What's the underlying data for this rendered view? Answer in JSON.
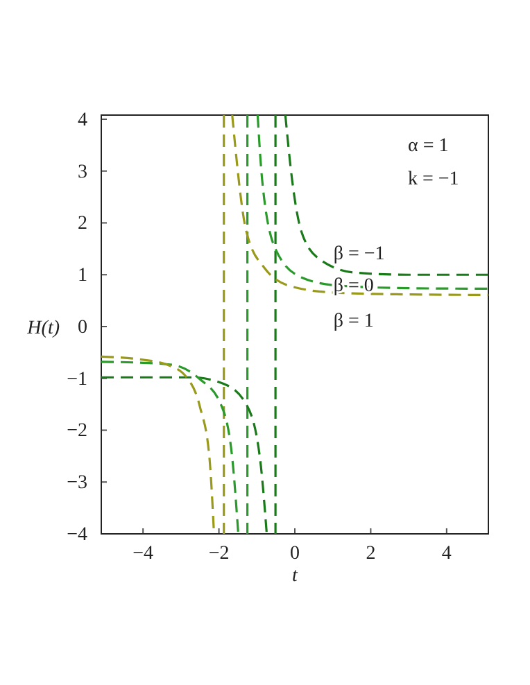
{
  "chart_data": {
    "type": "line",
    "xlabel": "t",
    "ylabel": "H(t)",
    "xlim": [
      -5.1,
      5.1
    ],
    "ylim": [
      -4,
      4.08
    ],
    "xticks": [
      {
        "value": -4,
        "label": "−4"
      },
      {
        "value": -2,
        "label": "−2"
      },
      0,
      2,
      4
    ],
    "yticks": [
      {
        "value": -4,
        "label": "−4"
      },
      {
        "value": -3,
        "label": "−3"
      },
      {
        "value": -2,
        "label": "−2"
      },
      {
        "value": -1,
        "label": "−1"
      },
      0,
      1,
      2,
      3,
      4
    ],
    "grid": false,
    "line_style": "dashed",
    "marker": "none",
    "series": [
      {
        "name": "β = −1",
        "color": "#1a7a1a",
        "x": [
          -5.1,
          -4,
          -2.73,
          -1.89,
          -1.28,
          -0.92,
          -0.74,
          null,
          -0.25,
          -0.07,
          0.17,
          0.65,
          1.6,
          3,
          5.1
        ],
        "values": [
          -0.98,
          -0.98,
          -0.98,
          -1.1,
          -1.5,
          -2.53,
          -4,
          null,
          4.08,
          2.82,
          1.84,
          1.3,
          1.04,
          1.0,
          1.0
        ]
      },
      {
        "name": "β = 0",
        "color": "#2a9a2a",
        "x": [
          -5.1,
          -4,
          -3.22,
          -2.51,
          -1.95,
          -1.65,
          -1.49,
          null,
          -0.98,
          -0.86,
          -0.5,
          0.17,
          1.15,
          3,
          5.1
        ],
        "values": [
          -0.68,
          -0.7,
          -0.74,
          -1.01,
          -1.5,
          -2.53,
          -4,
          null,
          4.08,
          2.82,
          1.48,
          0.95,
          0.79,
          0.74,
          0.73
        ]
      },
      {
        "name": "β = 1",
        "color": "#9a9a1a",
        "x": [
          -5.1,
          -4,
          -3.35,
          -2.86,
          -2.5,
          -2.25,
          -2.13,
          null,
          -1.65,
          -1.28,
          -0.8,
          -0.07,
          1.15,
          3,
          5.1
        ],
        "values": [
          -0.58,
          -0.64,
          -0.74,
          -0.97,
          -1.55,
          -2.53,
          -4,
          null,
          4.08,
          1.84,
          1.13,
          0.77,
          0.65,
          0.62,
          0.61
        ]
      }
    ],
    "ref_lines": [
      {
        "axis": "x",
        "value": -0.51,
        "color": "#1a7a1a",
        "line_style": "dashed"
      },
      {
        "axis": "x",
        "value": -1.25,
        "color": "#2a9a2a",
        "line_style": "dashed"
      },
      {
        "axis": "x",
        "value": -1.87,
        "color": "#9a9a1a",
        "line_style": "dashed"
      }
    ],
    "annotations": [
      "α = 1",
      "k = −1"
    ]
  }
}
